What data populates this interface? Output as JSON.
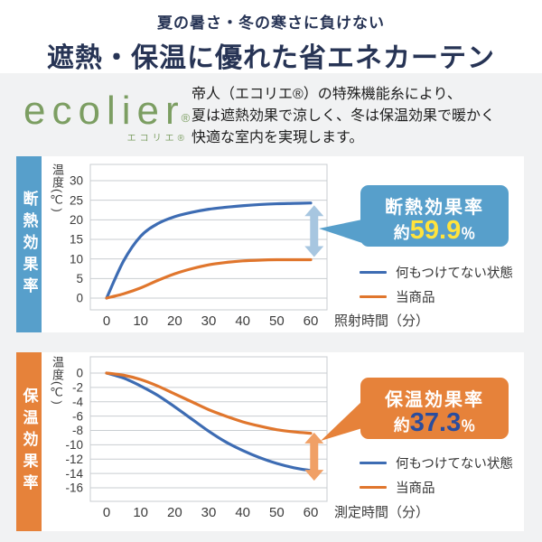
{
  "header": {
    "subtitle": "夏の暑さ・冬の寒さに負けない",
    "title": "遮熱・保温に優れた省エネカーテン"
  },
  "brand": {
    "logo_text": "ecolier",
    "registered_mark": "®",
    "logo_kana": "エコリエ®",
    "logo_color": "#7c9e62",
    "description_lines": [
      "帝人（エコリエ®）の特殊機能糸により、",
      "夏は遮熱効果で涼しく、冬は保温効果で暖かく",
      "快適な室内を実現します。"
    ]
  },
  "chart_data": [
    {
      "type": "line",
      "panel_label": "断熱効果率",
      "accent_color": "#579fcb",
      "y_axis_title": "温度(℃)",
      "x_axis_title": "照射時間（分）",
      "x_ticks": [
        0,
        10,
        20,
        30,
        40,
        50,
        60
      ],
      "y_ticks": [
        30,
        25,
        20,
        15,
        10,
        5,
        0
      ],
      "ylim": [
        -3,
        34
      ],
      "x": [
        0,
        5,
        10,
        15,
        20,
        25,
        30,
        35,
        40,
        45,
        50,
        55,
        60
      ],
      "series": [
        {
          "name": "何もつけてない状態",
          "color": "#3d6cb3",
          "values": [
            0,
            9.5,
            15.8,
            19.0,
            20.8,
            21.9,
            22.7,
            23.2,
            23.6,
            23.9,
            24.1,
            24.2,
            24.3
          ]
        },
        {
          "name": "当商品",
          "color": "#e0762d",
          "values": [
            0,
            1.1,
            2.6,
            4.5,
            6.2,
            7.5,
            8.5,
            9.1,
            9.5,
            9.7,
            9.8,
            9.8,
            9.8
          ]
        }
      ],
      "gap_arrow": {
        "x": 61,
        "from": 23.7,
        "to": 10.5,
        "color": "#a7c6e0"
      },
      "callout": {
        "title": "断熱効果率",
        "approx": "約",
        "value": "59.9",
        "unit": "％",
        "value_color": "#ffe33c"
      }
    },
    {
      "type": "line",
      "panel_label": "保温効果率",
      "accent_color": "#e6823a",
      "y_axis_title": "温度(℃)",
      "x_axis_title": "測定時間（分）",
      "x_ticks": [
        0,
        10,
        20,
        30,
        40,
        50,
        60
      ],
      "y_ticks": [
        0,
        -2,
        -4,
        -6,
        -8,
        -10,
        -12,
        -14,
        -16
      ],
      "ylim": [
        -18,
        2
      ],
      "x": [
        0,
        5,
        10,
        15,
        20,
        25,
        30,
        35,
        40,
        45,
        50,
        55,
        60
      ],
      "series": [
        {
          "name": "何もつけてない状態",
          "color": "#3d6cb3",
          "values": [
            0,
            -0.7,
            -1.8,
            -3.1,
            -4.7,
            -6.4,
            -8.1,
            -9.6,
            -10.8,
            -11.8,
            -12.6,
            -13.2,
            -13.6
          ]
        },
        {
          "name": "当商品",
          "color": "#e0762d",
          "values": [
            0,
            -0.3,
            -0.9,
            -1.8,
            -2.9,
            -4.0,
            -5.1,
            -6.0,
            -6.8,
            -7.4,
            -7.9,
            -8.2,
            -8.4
          ]
        }
      ],
      "gap_arrow": {
        "x": 61,
        "from": -8.3,
        "to": -15.0,
        "color": "#f0a066"
      },
      "callout": {
        "title": "保温効果率",
        "approx": "約",
        "value": "37.3",
        "unit": "％",
        "value_color": "#2a4d9e"
      }
    }
  ]
}
